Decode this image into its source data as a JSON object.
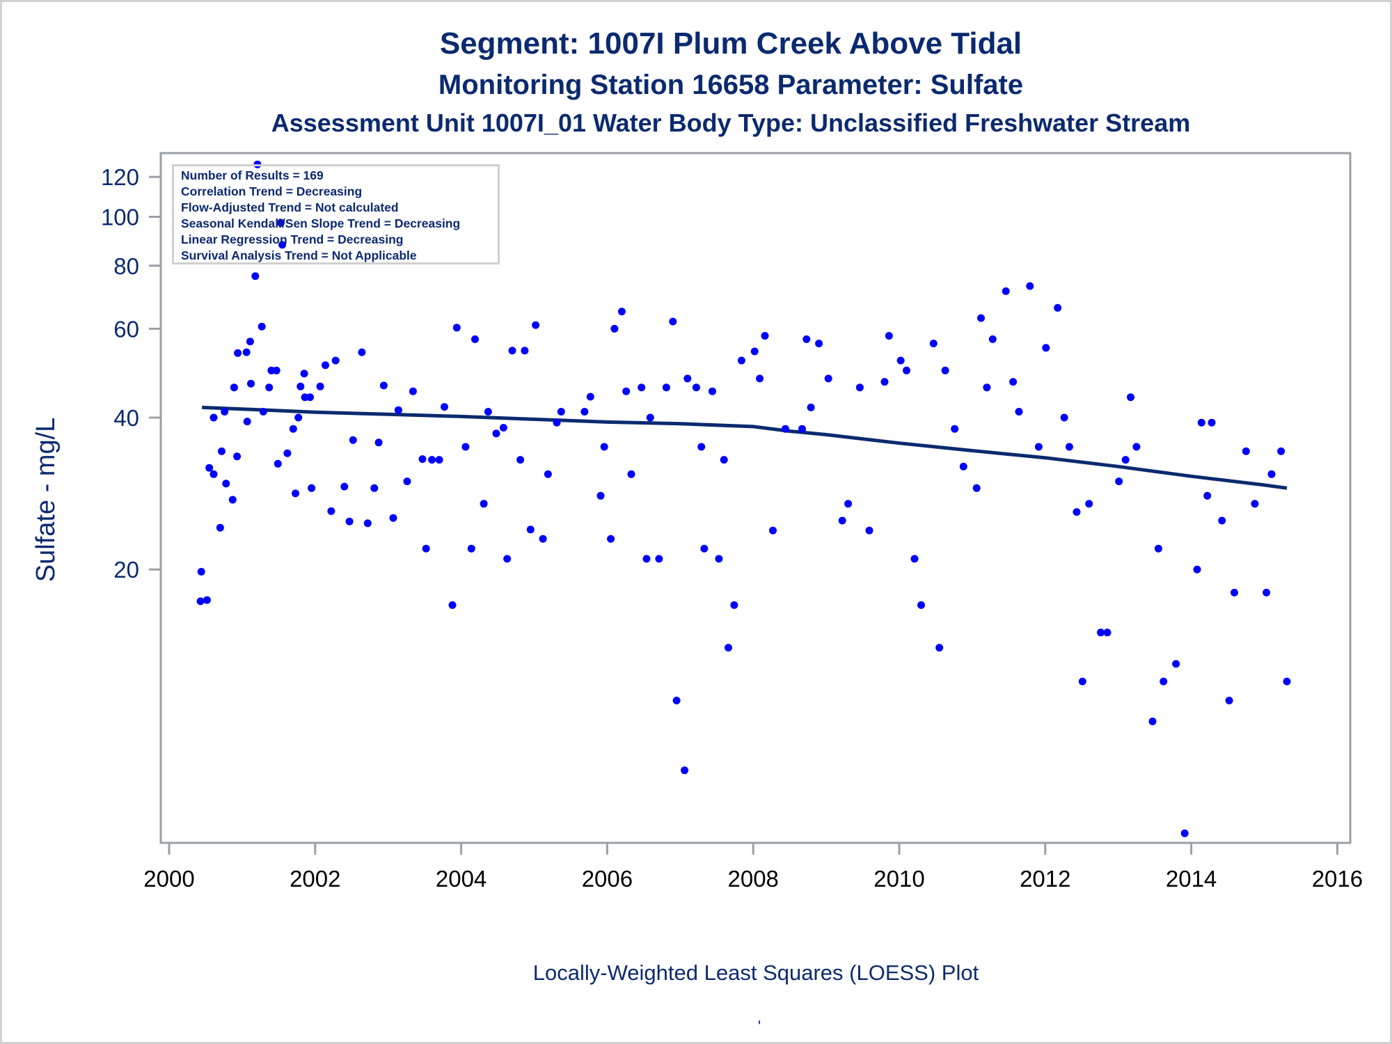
{
  "titles": {
    "line1": "Segment: 1007I  Plum Creek Above Tidal",
    "line2": "Monitoring Station 16658 Parameter: Sulfate",
    "line3": "Assessment Unit 1007I_01   Water Body Type: Unclassified Freshwater Stream"
  },
  "legend": [
    "Number of Results = 169",
    "Correlation Trend = Decreasing",
    "Flow-Adjusted Trend = Not calculated",
    "Seasonal Kendall/Sen Slope Trend = Decreasing",
    "Linear Regression Trend = Decreasing",
    "Survival Analysis Trend = Not Applicable"
  ],
  "footnote": "Locally-Weighted Least Squares (LOESS) Plot",
  "footmark": "'",
  "colors": {
    "text": "#0b2a6f",
    "points": "#0000ff",
    "loess": "#0b2a6f",
    "axis": "#9aa0a6"
  },
  "chart_data": {
    "type": "scatter",
    "title": "Segment: 1007I  Plum Creek Above Tidal",
    "xlabel": "",
    "ylabel": "Sulfate - mg/L",
    "xlim": [
      2000,
      2016
    ],
    "ylim": [
      5.4,
      130
    ],
    "yscale": "log",
    "grid": false,
    "xticks": [
      2000,
      2002,
      2004,
      2006,
      2008,
      2010,
      2012,
      2014,
      2016
    ],
    "xtick_labels": [
      "2000",
      "2002",
      "2004",
      "2006",
      "2008",
      "2010",
      "2012",
      "2014",
      "2016"
    ],
    "yticks": [
      20,
      40,
      60,
      80,
      100,
      120
    ],
    "ytick_labels": [
      "20",
      "40",
      "60",
      "80",
      "100",
      "120"
    ],
    "series": [
      {
        "name": "Sulfate results",
        "type": "scatter",
        "points": [
          [
            2000.43,
            17.3
          ],
          [
            2000.44,
            19.8
          ],
          [
            2000.52,
            17.4
          ],
          [
            2000.55,
            31.8
          ],
          [
            2000.61,
            40
          ],
          [
            2000.61,
            30.9
          ],
          [
            2000.7,
            24.2
          ],
          [
            2000.72,
            34.3
          ],
          [
            2000.76,
            41.1
          ],
          [
            2000.78,
            29.6
          ],
          [
            2000.87,
            27.5
          ],
          [
            2000.89,
            45.9
          ],
          [
            2000.93,
            33.5
          ],
          [
            2000.94,
            53.7
          ],
          [
            2001.06,
            53.9
          ],
          [
            2001.07,
            39.3
          ],
          [
            2001.11,
            56.6
          ],
          [
            2001.12,
            46.7
          ],
          [
            2001.18,
            76.3
          ],
          [
            2001.21,
            127
          ],
          [
            2001.27,
            60.6
          ],
          [
            2001.29,
            41.1
          ],
          [
            2001.37,
            45.9
          ],
          [
            2001.4,
            49.6
          ],
          [
            2001.47,
            49.6
          ],
          [
            2001.49,
            32.4
          ],
          [
            2001.53,
            97.3
          ],
          [
            2001.55,
            88.0
          ],
          [
            2001.62,
            34.0
          ],
          [
            2001.7,
            38.0
          ],
          [
            2001.73,
            28.3
          ],
          [
            2001.77,
            40
          ],
          [
            2001.8,
            46.1
          ],
          [
            2001.85,
            48.9
          ],
          [
            2001.86,
            43.9
          ],
          [
            2001.93,
            43.9
          ],
          [
            2001.95,
            29.0
          ],
          [
            2002.07,
            46.1
          ],
          [
            2002.14,
            50.8
          ],
          [
            2002.22,
            26.1
          ],
          [
            2002.28,
            51.9
          ],
          [
            2002.4,
            29.2
          ],
          [
            2002.47,
            24.9
          ],
          [
            2002.52,
            36.1
          ],
          [
            2002.64,
            53.9
          ],
          [
            2002.72,
            24.7
          ],
          [
            2002.81,
            29.0
          ],
          [
            2002.87,
            35.7
          ],
          [
            2002.94,
            46.3
          ],
          [
            2003.07,
            25.3
          ],
          [
            2003.14,
            41.4
          ],
          [
            2003.26,
            29.9
          ],
          [
            2003.34,
            45.1
          ],
          [
            2003.47,
            33.1
          ],
          [
            2003.52,
            22.0
          ],
          [
            2003.6,
            33.0
          ],
          [
            2003.7,
            33.0
          ],
          [
            2003.77,
            42.0
          ],
          [
            2003.88,
            17.0
          ],
          [
            2003.94,
            60.3
          ],
          [
            2004.06,
            35.0
          ],
          [
            2004.14,
            22.0
          ],
          [
            2004.19,
            57.2
          ],
          [
            2004.31,
            27.0
          ],
          [
            2004.37,
            41.1
          ],
          [
            2004.48,
            37.2
          ],
          [
            2004.58,
            38.2
          ],
          [
            2004.63,
            21.0
          ],
          [
            2004.7,
            54.3
          ],
          [
            2004.81,
            33.0
          ],
          [
            2004.87,
            54.3
          ],
          [
            2004.95,
            24.0
          ],
          [
            2005.02,
            61.0
          ],
          [
            2005.12,
            23.0
          ],
          [
            2005.19,
            30.9
          ],
          [
            2005.31,
            39.1
          ],
          [
            2005.37,
            41.1
          ],
          [
            2005.69,
            41.1
          ],
          [
            2005.77,
            44.0
          ],
          [
            2005.91,
            28.0
          ],
          [
            2005.96,
            35.0
          ],
          [
            2006.05,
            23.0
          ],
          [
            2006.1,
            60.0
          ],
          [
            2006.2,
            64.9
          ],
          [
            2006.26,
            45.1
          ],
          [
            2006.33,
            30.9
          ],
          [
            2006.47,
            45.9
          ],
          [
            2006.54,
            21.0
          ],
          [
            2006.59,
            40
          ],
          [
            2006.71,
            21.0
          ],
          [
            2006.81,
            45.9
          ],
          [
            2006.9,
            62.0
          ],
          [
            2006.95,
            11.0
          ],
          [
            2007.06,
            8.0
          ],
          [
            2007.1,
            47.8
          ],
          [
            2007.22,
            45.9
          ],
          [
            2007.29,
            35.0
          ],
          [
            2007.33,
            22.0
          ],
          [
            2007.44,
            45.1
          ],
          [
            2007.53,
            21.0
          ],
          [
            2007.6,
            33.0
          ],
          [
            2007.66,
            14.0
          ],
          [
            2007.74,
            17.0
          ],
          [
            2007.84,
            51.9
          ],
          [
            2008.02,
            54.1
          ],
          [
            2008.09,
            47.8
          ],
          [
            2008.16,
            58.1
          ],
          [
            2008.27,
            23.9
          ],
          [
            2008.44,
            38.0
          ],
          [
            2008.67,
            38.0
          ],
          [
            2008.73,
            57.2
          ],
          [
            2008.79,
            41.9
          ],
          [
            2008.9,
            56.1
          ],
          [
            2009.03,
            47.8
          ],
          [
            2009.22,
            25.0
          ],
          [
            2009.3,
            27.0
          ],
          [
            2009.46,
            45.9
          ],
          [
            2009.59,
            23.9
          ],
          [
            2009.8,
            47.1
          ],
          [
            2009.86,
            58.1
          ],
          [
            2010.02,
            51.9
          ],
          [
            2010.1,
            49.6
          ],
          [
            2010.21,
            21.0
          ],
          [
            2010.3,
            17.0
          ],
          [
            2010.47,
            56.1
          ],
          [
            2010.55,
            14.0
          ],
          [
            2010.63,
            49.6
          ],
          [
            2010.76,
            38.0
          ],
          [
            2010.88,
            32.0
          ],
          [
            2011.06,
            29.0
          ],
          [
            2011.12,
            63.0
          ],
          [
            2011.2,
            45.9
          ],
          [
            2011.28,
            57.2
          ],
          [
            2011.46,
            71.2
          ],
          [
            2011.56,
            47.1
          ],
          [
            2011.64,
            41.1
          ],
          [
            2011.79,
            72.9
          ],
          [
            2011.91,
            35.0
          ],
          [
            2012.01,
            55.0
          ],
          [
            2012.17,
            66.0
          ],
          [
            2012.26,
            40
          ],
          [
            2012.33,
            35.0
          ],
          [
            2012.43,
            26.0
          ],
          [
            2012.51,
            12.0
          ],
          [
            2012.6,
            27.0
          ],
          [
            2012.76,
            15.0
          ],
          [
            2012.85,
            15.0
          ],
          [
            2013.01,
            29.9
          ],
          [
            2013.1,
            33.0
          ],
          [
            2013.17,
            43.9
          ],
          [
            2013.25,
            35.0
          ],
          [
            2013.47,
            10.0
          ],
          [
            2013.55,
            22.0
          ],
          [
            2013.62,
            12.0
          ],
          [
            2013.79,
            13.0
          ],
          [
            2013.91,
            6.0
          ],
          [
            2014.08,
            20.0
          ],
          [
            2014.14,
            39.1
          ],
          [
            2014.22,
            28.0
          ],
          [
            2014.28,
            39.1
          ],
          [
            2014.42,
            25.0
          ],
          [
            2014.52,
            11.0
          ],
          [
            2014.59,
            18.0
          ],
          [
            2014.75,
            34.3
          ],
          [
            2014.87,
            27.0
          ],
          [
            2015.03,
            18.0
          ],
          [
            2015.1,
            30.9
          ],
          [
            2015.23,
            34.3
          ],
          [
            2015.31,
            12.0
          ]
        ]
      },
      {
        "name": "LOESS",
        "type": "line",
        "points": [
          [
            2000.45,
            41.9
          ],
          [
            2001,
            41.6
          ],
          [
            2002,
            41.0
          ],
          [
            2003,
            40.6
          ],
          [
            2004,
            40.2
          ],
          [
            2005,
            39.7
          ],
          [
            2006,
            39.2
          ],
          [
            2007,
            38.9
          ],
          [
            2008,
            38.4
          ],
          [
            2008.5,
            37.6
          ],
          [
            2009,
            37.0
          ],
          [
            2010,
            35.6
          ],
          [
            2011,
            34.4
          ],
          [
            2012,
            33.3
          ],
          [
            2013,
            32.0
          ],
          [
            2014,
            30.6
          ],
          [
            2015,
            29.4
          ],
          [
            2015.31,
            29.0
          ]
        ]
      }
    ]
  }
}
